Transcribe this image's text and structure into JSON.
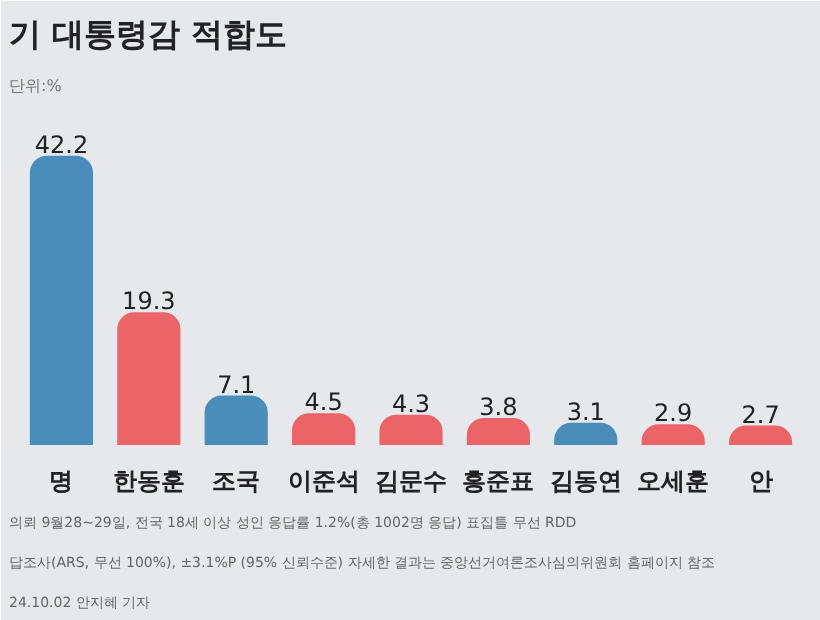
{
  "chart_data": {
    "type": "bar",
    "title": "기 대통령감 적합도",
    "subtitle": "단위:%",
    "categories": [
      "명",
      "한동훈",
      "조국",
      "이준석",
      "김문수",
      "홍준표",
      "김동연",
      "오세훈",
      "안"
    ],
    "values": [
      42.2,
      19.3,
      7.1,
      4.5,
      4.3,
      3.8,
      3.1,
      2.9,
      2.7
    ],
    "data_labels": true,
    "colors": [
      "#4a8dbb",
      "#eb6468",
      "#4a8dbb",
      "#eb6468",
      "#eb6468",
      "#eb6468",
      "#4a8dbb",
      "#eb6468",
      "#eb6468"
    ],
    "tick_labels": "x",
    "annotations": [
      "의뢰 9월28~29일, 전국 18세 이상 성인 응답률 1.2%(총 1002명 응답) 표집틀 무선 RDD",
      "답조사(ARS, 무선 100%), ±3.1%P (95% 신뢰수준) 자세한 결과는 중앙선거여론조사심의위원회 홈페이지 참조",
      "24.10.02 안지혜 기자"
    ]
  }
}
